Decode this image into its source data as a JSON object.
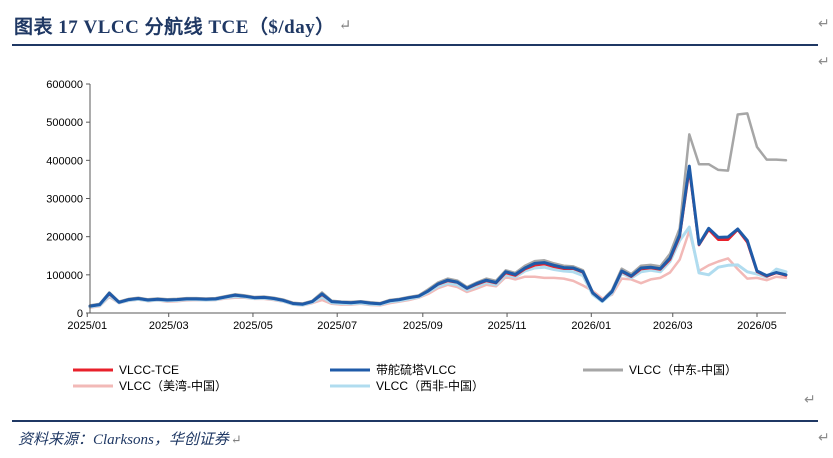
{
  "header": {
    "title": "图表 17   VLCC 分航线 TCE（$/day）",
    "para_mark": "↵"
  },
  "footer": {
    "source": "资料来源：Clarksons，华创证券",
    "para_mark": "↵"
  },
  "side_marks": [
    "↵",
    "↵",
    "↵",
    "↵"
  ],
  "colors": {
    "frame": "#1f3864",
    "axis": "#595959"
  },
  "chart_data": {
    "type": "line",
    "x_tick_labels": [
      "2025/01",
      "2025/03",
      "2025/05",
      "2025/07",
      "2025/09",
      "2025/11",
      "2026/01",
      "2026/03",
      "2026/05"
    ],
    "y_tick_labels": [
      "0",
      "100000",
      "200000",
      "300000",
      "400000",
      "500000",
      "600000"
    ],
    "ylim": [
      0,
      600000
    ],
    "xlim": [
      "2025-01-03",
      "2026-05-22"
    ],
    "grid": false,
    "legend_position": "bottom",
    "x": [
      "2025-01-03",
      "2025-01-10",
      "2025-01-17",
      "2025-01-24",
      "2025-01-31",
      "2025-02-07",
      "2025-02-14",
      "2025-02-21",
      "2025-02-28",
      "2025-03-07",
      "2025-03-14",
      "2025-03-21",
      "2025-03-28",
      "2025-04-04",
      "2025-04-11",
      "2025-04-18",
      "2025-04-25",
      "2025-05-02",
      "2025-05-09",
      "2025-05-16",
      "2025-05-23",
      "2025-05-30",
      "2025-06-06",
      "2025-06-13",
      "2025-06-20",
      "2025-06-27",
      "2025-07-04",
      "2025-07-11",
      "2025-07-18",
      "2025-07-25",
      "2025-08-01",
      "2025-08-08",
      "2025-08-15",
      "2025-08-22",
      "2025-08-29",
      "2025-09-05",
      "2025-09-12",
      "2025-09-19",
      "2025-09-26",
      "2025-10-03",
      "2025-10-10",
      "2025-10-17",
      "2025-10-24",
      "2025-10-31",
      "2025-11-07",
      "2025-11-14",
      "2025-11-21",
      "2025-11-28",
      "2025-12-05",
      "2025-12-12",
      "2025-12-19",
      "2025-12-26",
      "2026-01-02",
      "2026-01-09",
      "2026-01-16",
      "2026-01-23",
      "2026-01-30",
      "2026-02-06",
      "2026-02-13",
      "2026-02-20",
      "2026-02-27",
      "2026-03-06",
      "2026-03-13",
      "2026-03-20",
      "2026-03-27",
      "2026-04-03",
      "2026-04-10",
      "2026-04-17",
      "2026-04-24",
      "2026-05-01",
      "2026-05-08",
      "2026-05-15",
      "2026-05-22"
    ],
    "series": [
      {
        "name": "VLCC-TCE",
        "color": "#e8212b",
        "width": 2.5,
        "values": [
          18000,
          22000,
          50000,
          28000,
          35000,
          38000,
          34000,
          36000,
          34000,
          35000,
          37000,
          37000,
          36000,
          37000,
          42000,
          46000,
          44000,
          40000,
          41000,
          38000,
          33000,
          25000,
          23000,
          30000,
          48000,
          30000,
          28000,
          27000,
          29000,
          26000,
          24000,
          32000,
          35000,
          40000,
          44000,
          58000,
          75000,
          84000,
          80000,
          64000,
          75000,
          84000,
          78000,
          105000,
          98000,
          115000,
          125000,
          128000,
          121000,
          116000,
          116000,
          106000,
          52000,
          32000,
          55000,
          108000,
          95000,
          115000,
          118000,
          114000,
          140000,
          200000,
          375000,
          178000,
          218000,
          192000,
          192000,
          218000,
          185000,
          108000,
          96000,
          105000,
          98000
        ]
      },
      {
        "name": "带舵硫塔VLCC",
        "color": "#1f5ba8",
        "width": 3,
        "values": [
          18000,
          22000,
          52000,
          28000,
          35000,
          38000,
          34000,
          36000,
          34000,
          35000,
          37000,
          37000,
          36000,
          37000,
          42000,
          47000,
          44000,
          40000,
          41000,
          38000,
          33000,
          25000,
          23000,
          30000,
          50000,
          30000,
          28000,
          27000,
          29000,
          26000,
          24000,
          32000,
          35000,
          40000,
          44000,
          58000,
          76000,
          86000,
          81000,
          65000,
          77000,
          86000,
          80000,
          108000,
          101000,
          118000,
          130000,
          132000,
          125000,
          119000,
          118000,
          108000,
          53000,
          32000,
          56000,
          110000,
          97000,
          118000,
          120000,
          116000,
          144000,
          205000,
          385000,
          180000,
          222000,
          198000,
          199000,
          220000,
          190000,
          110000,
          98000,
          106000,
          100000
        ]
      },
      {
        "name": "VLCC（中东-中国）",
        "color": "#a6a6a6",
        "width": 2.5,
        "values": [
          20000,
          24000,
          54000,
          30000,
          37000,
          40000,
          36000,
          38000,
          36000,
          37000,
          39000,
          39000,
          38000,
          39000,
          44000,
          49000,
          46000,
          42000,
          43000,
          40000,
          35000,
          27000,
          25000,
          32000,
          54000,
          32000,
          30000,
          29000,
          31000,
          28000,
          26000,
          34000,
          37000,
          42000,
          46000,
          62000,
          80000,
          90000,
          85000,
          68000,
          80000,
          90000,
          84000,
          112000,
          105000,
          124000,
          136000,
          138000,
          130000,
          124000,
          122000,
          112000,
          55000,
          34000,
          60000,
          116000,
          102000,
          124000,
          126000,
          122000,
          155000,
          222000,
          468000,
          390000,
          390000,
          375000,
          373000,
          520000,
          523000,
          435000,
          402000,
          402000,
          400000
        ]
      },
      {
        "name": "VLCC（美湾-中国）",
        "color": "#f2b9b7",
        "width": 2.5,
        "values": [
          14000,
          18000,
          42000,
          26000,
          32000,
          35000,
          31000,
          33000,
          30000,
          31000,
          33000,
          34000,
          33000,
          34000,
          38000,
          40000,
          40000,
          37000,
          37000,
          34000,
          30000,
          22000,
          20000,
          26000,
          34000,
          24000,
          22000,
          22000,
          24000,
          21000,
          20000,
          26000,
          30000,
          34000,
          40000,
          50000,
          65000,
          74000,
          68000,
          55000,
          64000,
          74000,
          70000,
          94000,
          88000,
          95000,
          95000,
          92000,
          92000,
          90000,
          84000,
          72000,
          58000,
          38000,
          48000,
          90000,
          88000,
          78000,
          88000,
          92000,
          106000,
          140000,
          215000,
          110000,
          125000,
          135000,
          143000,
          115000,
          90000,
          92000,
          86000,
          95000,
          92000
        ]
      },
      {
        "name": "VLCC（西非-中国）",
        "color": "#b0dcef",
        "width": 3,
        "values": [
          16000,
          20000,
          45000,
          27000,
          33000,
          36000,
          32000,
          34000,
          32000,
          33000,
          35000,
          35000,
          34000,
          35000,
          40000,
          43000,
          42000,
          38000,
          39000,
          36000,
          31000,
          23000,
          21000,
          28000,
          42000,
          27000,
          25000,
          24000,
          26000,
          23000,
          22000,
          29000,
          32000,
          37000,
          42000,
          55000,
          70000,
          78000,
          74000,
          60000,
          70000,
          80000,
          74000,
          100000,
          94000,
          110000,
          118000,
          120000,
          114000,
          110000,
          108000,
          98000,
          48000,
          30000,
          52000,
          104000,
          92000,
          108000,
          112000,
          108000,
          135000,
          190000,
          225000,
          105000,
          100000,
          120000,
          125000,
          126000,
          108000,
          102000,
          94000,
          115000,
          108000
        ]
      }
    ]
  }
}
